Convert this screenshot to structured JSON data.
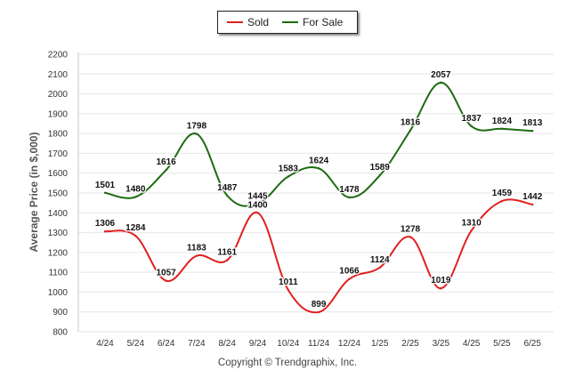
{
  "chart_data": {
    "type": "line",
    "ylabel": "Average Price (in $,000)",
    "xlabel": "",
    "categories": [
      "4/24",
      "5/24",
      "6/24",
      "7/24",
      "8/24",
      "9/24",
      "10/24",
      "11/24",
      "12/24",
      "1/25",
      "2/25",
      "3/25",
      "4/25",
      "5/25",
      "6/25"
    ],
    "ylim": [
      800,
      2200
    ],
    "yticks": [
      800,
      900,
      1000,
      1100,
      1200,
      1300,
      1400,
      1500,
      1600,
      1700,
      1800,
      1900,
      2000,
      2100,
      2200
    ],
    "grid": true,
    "legend_position": "top-center",
    "series": [
      {
        "name": "Sold",
        "color": "#e0201f",
        "values": [
          1306,
          1284,
          1057,
          1183,
          1161,
          1400,
          1011,
          899,
          1066,
          1124,
          1278,
          1019,
          1310,
          1459,
          1442
        ]
      },
      {
        "name": "For Sale",
        "color": "#1e6b12",
        "values": [
          1501,
          1480,
          1616,
          1798,
          1487,
          1445,
          1583,
          1624,
          1478,
          1589,
          1816,
          2057,
          1837,
          1824,
          1813
        ]
      }
    ]
  },
  "footer": {
    "copyright": "Copyright © Trendgraphix, Inc."
  }
}
